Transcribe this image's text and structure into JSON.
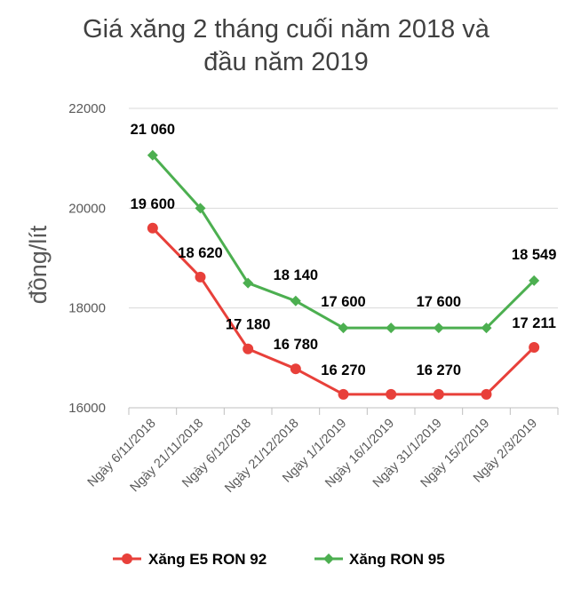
{
  "chart_data": {
    "type": "line",
    "title_lines": [
      "Giá xăng 2 tháng cuối năm 2018 và",
      "đầu năm 2019"
    ],
    "ylabel": "đồng/lít",
    "xlabel": "",
    "ylim": [
      16000,
      22000
    ],
    "yticks": [
      16000,
      18000,
      20000,
      22000
    ],
    "ytick_labels": [
      "16000",
      "18000",
      "20000",
      "22000"
    ],
    "grid": true,
    "legend_position": "bottom",
    "categories": [
      "Ngày 6/11/2018",
      "Ngày 21/11/2018",
      "Ngày 6/12/2018",
      "Ngày 21/12/2018",
      "Ngày 1/1/2019",
      "Ngày 16/1/2019",
      "Ngày 31/1/2019",
      "Ngày 15/2/2019",
      "Ngày 2/3/2019"
    ],
    "series": [
      {
        "name": "Xăng E5 RON 92",
        "color": "#e8403a",
        "marker": "circle",
        "values": [
          19600,
          18620,
          17180,
          16780,
          16270,
          16270,
          16270,
          16270,
          17211
        ],
        "labels": [
          "19 600",
          "18 620",
          "17 180",
          "16 780",
          "16 270",
          "",
          "16 270",
          "",
          "17 211"
        ]
      },
      {
        "name": "Xăng RON 95",
        "color": "#4caf50",
        "marker": "diamond",
        "values": [
          21060,
          20000,
          18500,
          18140,
          17600,
          17600,
          17600,
          17600,
          18549
        ],
        "labels": [
          "21 060",
          "",
          "",
          "18 140",
          "17 600",
          "",
          "17 600",
          "",
          "18 549"
        ]
      }
    ]
  }
}
